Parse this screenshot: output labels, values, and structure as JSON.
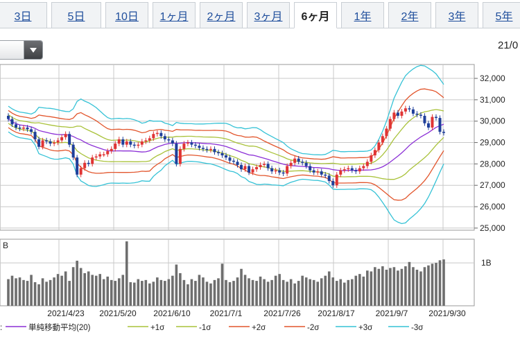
{
  "tabs": [
    {
      "label": "3日",
      "active": false
    },
    {
      "label": "5日",
      "active": false
    },
    {
      "label": "10日",
      "active": false
    },
    {
      "label": "1ヶ月",
      "active": false
    },
    {
      "label": "2ヶ月",
      "active": false
    },
    {
      "label": "3ヶ月",
      "active": false
    },
    {
      "label": "6ヶ月",
      "active": true
    },
    {
      "label": "1年",
      "active": false
    },
    {
      "label": "2年",
      "active": false
    },
    {
      "label": "3年",
      "active": false
    },
    {
      "label": "5年",
      "active": false
    }
  ],
  "date_partial": "21/0",
  "colors": {
    "sma": "#8b2fd6",
    "sigma1": "#a9c23a",
    "sigma2": "#e2552c",
    "sigma3": "#35c2d6",
    "bull": "#e03434",
    "bear": "#1f3f9a",
    "volume": "#6e6e6e",
    "grid": "#c8c8c8"
  },
  "chart_data": {
    "type": "candlestick",
    "title": "",
    "price_axis": {
      "ticks": [
        "32,000",
        "31,000",
        "30,000",
        "29,000",
        "28,000",
        "27,000",
        "26,000",
        "25,000"
      ],
      "ylim": [
        24900,
        32900
      ]
    },
    "volume_axis": {
      "label": "B",
      "tick": "1B"
    },
    "x_labels": [
      "2021/4/23",
      "2021/5/20",
      "2021/6/10",
      "2021/7/1",
      "2021/7/26",
      "2021/8/17",
      "2021/9/7",
      "2021/9/30"
    ],
    "legend": [
      {
        "label": "単純移動平均(20)",
        "color": "#8b2fd6"
      },
      {
        "label": "+1σ",
        "color": "#a9c23a"
      },
      {
        "label": "-1σ",
        "color": "#a9c23a"
      },
      {
        "label": "+2σ",
        "color": "#e2552c"
      },
      {
        "label": "-2σ",
        "color": "#e2552c"
      },
      {
        "label": "+3σ",
        "color": "#35c2d6"
      },
      {
        "label": "-3σ",
        "color": "#35c2d6"
      }
    ],
    "close": [
      30100,
      29850,
      29700,
      29650,
      29700,
      29620,
      29500,
      29150,
      28800,
      29100,
      29050,
      28950,
      29000,
      29100,
      29250,
      29400,
      28900,
      28300,
      27500,
      27800,
      28050,
      28000,
      28300,
      28350,
      28450,
      28450,
      28600,
      28700,
      28950,
      29150,
      28900,
      29050,
      28900,
      28850,
      28900,
      29050,
      29100,
      29200,
      29400,
      29450,
      29300,
      29150,
      29100,
      28950,
      28000,
      28700,
      28950,
      29000,
      28900,
      28850,
      28750,
      28700,
      28650,
      28700,
      28550,
      28500,
      28400,
      28300,
      28150,
      28100,
      27950,
      27750,
      27900,
      27600,
      27750,
      27850,
      27950,
      28000,
      27800,
      27650,
      27700,
      27600,
      27550,
      27900,
      28050,
      28250,
      28100,
      28050,
      27900,
      27700,
      27600,
      27650,
      27500,
      27450,
      27200,
      27000,
      27500,
      27700,
      27750,
      27800,
      27700,
      27650,
      27800,
      27900,
      28100,
      28400,
      28650,
      29000,
      29300,
      29650,
      30100,
      30400,
      30250,
      30450,
      30600,
      30550,
      30350,
      30300,
      30250,
      29900,
      29700,
      30200,
      30150,
      29500,
      29450
    ],
    "volume": [
      0.62,
      0.7,
      0.64,
      0.66,
      0.6,
      0.58,
      0.72,
      0.55,
      0.5,
      0.64,
      0.56,
      0.6,
      0.66,
      0.74,
      0.7,
      0.8,
      0.58,
      0.9,
      1.05,
      0.88,
      0.76,
      0.8,
      0.72,
      0.7,
      0.74,
      0.62,
      0.68,
      0.6,
      0.58,
      0.64,
      0.72,
      1.5,
      0.55,
      0.54,
      0.62,
      0.58,
      0.6,
      0.52,
      0.56,
      0.66,
      0.6,
      0.58,
      0.62,
      0.7,
      0.96,
      0.76,
      0.6,
      0.5,
      0.62,
      0.58,
      0.72,
      0.66,
      0.56,
      0.52,
      0.6,
      0.64,
      0.98,
      0.6,
      0.55,
      0.58,
      0.66,
      0.86,
      0.72,
      0.64,
      0.6,
      0.58,
      0.68,
      0.62,
      0.56,
      0.6,
      0.7,
      0.74,
      0.6,
      0.56,
      0.62,
      0.52,
      0.58,
      0.7,
      0.66,
      0.62,
      0.6,
      0.56,
      0.64,
      0.7,
      0.8,
      0.66,
      0.58,
      0.62,
      0.54,
      0.6,
      0.62,
      0.7,
      0.74,
      0.68,
      0.82,
      0.8,
      0.9,
      0.86,
      0.92,
      0.84,
      0.88,
      0.9,
      0.82,
      0.86,
      0.92,
      1.02,
      0.9,
      0.84,
      0.8,
      0.9,
      0.94,
      0.98,
      1.0,
      1.06,
      1.08
    ]
  }
}
